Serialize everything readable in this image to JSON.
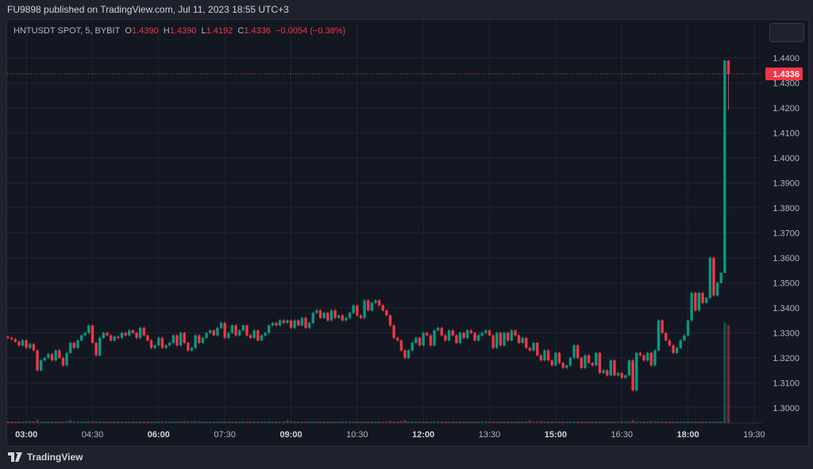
{
  "header": {
    "title": "FU9898 published on TradingView.com, Jul 11, 2023 18:55 UTC+3"
  },
  "legend": {
    "symbol": "HNTUSDT SPOT, 5, BYBIT",
    "o_label": "O",
    "o": "1.4390",
    "h_label": "H",
    "h": "1.4390",
    "l_label": "L",
    "l": "1.4192",
    "c_label": "C",
    "c": "1.4336",
    "change": "−0.0054 (−0.38%)"
  },
  "footer": {
    "brand": "TradingView"
  },
  "colors": {
    "up": "#089981",
    "down": "#f23645",
    "background": "#131722",
    "grid": "#1f2430"
  },
  "chart_data": {
    "type": "candlestick",
    "interval": "5",
    "ylim": [
      1.293,
      1.4475
    ],
    "y_ticks": [
      "1.3000",
      "1.3100",
      "1.3200",
      "1.3300",
      "1.3400",
      "1.3500",
      "1.3600",
      "1.3700",
      "1.3800",
      "1.3900",
      "1.4000",
      "1.4100",
      "1.4200",
      "1.4300",
      "1.4400"
    ],
    "x_ticks": [
      {
        "label": "03:00",
        "bold": true,
        "bar": 5
      },
      {
        "label": "04:30",
        "bold": false,
        "bar": 23
      },
      {
        "label": "06:00",
        "bold": true,
        "bar": 41
      },
      {
        "label": "07:30",
        "bold": false,
        "bar": 59
      },
      {
        "label": "09:00",
        "bold": true,
        "bar": 77
      },
      {
        "label": "10:30",
        "bold": false,
        "bar": 95
      },
      {
        "label": "12:00",
        "bold": true,
        "bar": 113
      },
      {
        "label": "13:30",
        "bold": false,
        "bar": 131
      },
      {
        "label": "15:00",
        "bold": true,
        "bar": 149
      },
      {
        "label": "16:30",
        "bold": false,
        "bar": 167
      },
      {
        "label": "18:00",
        "bold": true,
        "bar": 185
      },
      {
        "label": "19:30",
        "bold": false,
        "bar": 203
      }
    ],
    "last_price": "1.4336",
    "first_open": 1.3285,
    "closes": [
      1.328,
      1.3275,
      1.3265,
      1.325,
      1.327,
      1.324,
      1.3255,
      1.323,
      1.315,
      1.319,
      1.32,
      1.3215,
      1.319,
      1.323,
      1.32,
      1.317,
      1.322,
      1.326,
      1.324,
      1.327,
      1.329,
      1.33,
      1.333,
      1.326,
      1.321,
      1.328,
      1.33,
      1.329,
      1.327,
      1.3285,
      1.328,
      1.33,
      1.329,
      1.331,
      1.33,
      1.328,
      1.332,
      1.329,
      1.327,
      1.324,
      1.325,
      1.328,
      1.324,
      1.325,
      1.326,
      1.329,
      1.325,
      1.33,
      1.326,
      1.323,
      1.324,
      1.329,
      1.326,
      1.328,
      1.33,
      1.331,
      1.329,
      1.332,
      1.334,
      1.328,
      1.33,
      1.333,
      1.329,
      1.331,
      1.333,
      1.329,
      1.328,
      1.331,
      1.327,
      1.329,
      1.33,
      1.333,
      1.334,
      1.333,
      1.335,
      1.334,
      1.335,
      1.332,
      1.335,
      1.333,
      1.336,
      1.332,
      1.334,
      1.338,
      1.339,
      1.336,
      1.338,
      1.335,
      1.339,
      1.336,
      1.337,
      1.335,
      1.336,
      1.338,
      1.341,
      1.337,
      1.336,
      1.343,
      1.339,
      1.342,
      1.343,
      1.341,
      1.339,
      1.337,
      1.333,
      1.328,
      1.327,
      1.323,
      1.32,
      1.323,
      1.326,
      1.328,
      1.325,
      1.33,
      1.329,
      1.325,
      1.331,
      1.332,
      1.329,
      1.327,
      1.331,
      1.329,
      1.326,
      1.33,
      1.328,
      1.331,
      1.33,
      1.327,
      1.329,
      1.33,
      1.331,
      1.329,
      1.324,
      1.33,
      1.325,
      1.33,
      1.327,
      1.331,
      1.329,
      1.326,
      1.328,
      1.324,
      1.323,
      1.326,
      1.321,
      1.319,
      1.323,
      1.319,
      1.317,
      1.322,
      1.318,
      1.316,
      1.317,
      1.32,
      1.325,
      1.32,
      1.316,
      1.321,
      1.318,
      1.317,
      1.322,
      1.314,
      1.315,
      1.313,
      1.319,
      1.313,
      1.314,
      1.312,
      1.313,
      1.319,
      1.307,
      1.322,
      1.321,
      1.319,
      1.322,
      1.317,
      1.323,
      1.335,
      1.33,
      1.327,
      1.325,
      1.322,
      1.324,
      1.327,
      1.329,
      1.335,
      1.346,
      1.339,
      1.346,
      1.342,
      1.344,
      1.36,
      1.345,
      1.35,
      1.354,
      1.439,
      1.4336
    ],
    "last_candle": {
      "open": 1.439,
      "high": 1.439,
      "low": 1.4192,
      "close": 1.4336
    },
    "volume": [
      1,
      1,
      1,
      1,
      1,
      1,
      2,
      1,
      3,
      1,
      1,
      1,
      1,
      1,
      1,
      1,
      2,
      3,
      1,
      1,
      1,
      1,
      2,
      1,
      1,
      1,
      1,
      1,
      1,
      1,
      1,
      1,
      1,
      1,
      1,
      1,
      1,
      1,
      1,
      1,
      1,
      1,
      1,
      1,
      1,
      1,
      1,
      1,
      2,
      1,
      1,
      2,
      1,
      1,
      1,
      1,
      1,
      1,
      1,
      1,
      1,
      1,
      1,
      1,
      1,
      1,
      1,
      1,
      1,
      1,
      1,
      1,
      1,
      1,
      1,
      1,
      3,
      1,
      1,
      1,
      1,
      1,
      1,
      1,
      1,
      1,
      1,
      1,
      1,
      1,
      1,
      1,
      1,
      1,
      1,
      1,
      1,
      1,
      1,
      1,
      1,
      1,
      1,
      1,
      2,
      1,
      1,
      2,
      3,
      1,
      1,
      1,
      1,
      1,
      1,
      1,
      1,
      1,
      1,
      1,
      1,
      1,
      1,
      1,
      1,
      1,
      1,
      1,
      1,
      1,
      1,
      1,
      1,
      1,
      1,
      1,
      1,
      1,
      1,
      1,
      1,
      1,
      3,
      1,
      1,
      2,
      1,
      1,
      1,
      1,
      1,
      1,
      1,
      1,
      1,
      1,
      1,
      1,
      1,
      1,
      1,
      1,
      1,
      1,
      1,
      1,
      1,
      1,
      1,
      1,
      3,
      1,
      1,
      1,
      1,
      2,
      1,
      1,
      1,
      1,
      1,
      1,
      1,
      1,
      1,
      1,
      1,
      1,
      1,
      1,
      1,
      1,
      1,
      1,
      1,
      100,
      98
    ]
  }
}
